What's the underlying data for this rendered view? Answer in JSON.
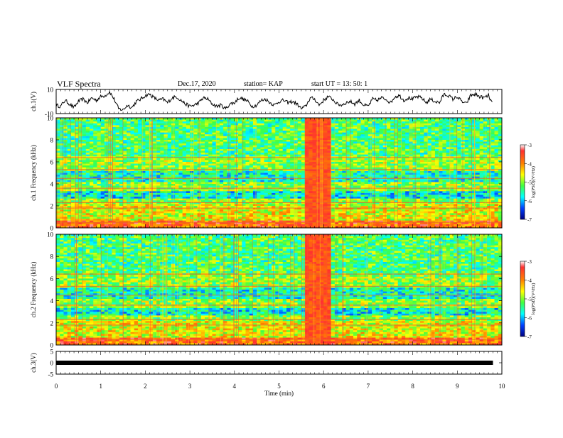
{
  "header": {
    "title": "VLF Spectra",
    "date": "Dec.17, 2020",
    "station": "station= KAP",
    "start": "start  UT =   13: 50: 1"
  },
  "colors": {
    "axis": "#000000",
    "trace": "#000000"
  },
  "chart_data": [
    {
      "type": "line",
      "panel": "ch1-waveform",
      "ylabel": "ch.1(V)",
      "ylim": [
        -10,
        10
      ],
      "yticks": [
        "10",
        "-10"
      ],
      "xlim": [
        0,
        10
      ],
      "series": [
        {
          "x": [
            0,
            0.1,
            0.2,
            0.3,
            0.4,
            0.5,
            0.6,
            0.7,
            0.8,
            0.9,
            1.0,
            1.1,
            1.2,
            1.3,
            1.4,
            1.5,
            1.6,
            1.7,
            1.8,
            1.9,
            2.0,
            2.1,
            2.2,
            2.3,
            2.4,
            2.5,
            2.6,
            2.7,
            2.8,
            2.9,
            3.0,
            3.1,
            3.2,
            3.3,
            3.4,
            3.5,
            3.6,
            3.7,
            3.8,
            3.9,
            4.0,
            4.1,
            4.2,
            4.3,
            4.4,
            4.5,
            4.6,
            4.7,
            4.8,
            4.9,
            5.0,
            5.1,
            5.2,
            5.3,
            5.4,
            5.5,
            5.6,
            5.7,
            5.8,
            5.9,
            6.0,
            6.1,
            6.2,
            6.3,
            6.4,
            6.5,
            6.6,
            6.7,
            6.8,
            6.9,
            7.0,
            7.1,
            7.2,
            7.3,
            7.4,
            7.5,
            7.6,
            7.7,
            7.8,
            7.9,
            8.0,
            8.1,
            8.2,
            8.3,
            8.4,
            8.5,
            8.6,
            8.7,
            8.8,
            8.9,
            9.0,
            9.1,
            9.2,
            9.3,
            9.4,
            9.5,
            9.6,
            9.7,
            9.8
          ],
          "values": [
            -3,
            -4,
            1,
            -2,
            -5,
            0,
            2,
            -1,
            3,
            1,
            4,
            5,
            8,
            2,
            -6,
            -7,
            -3,
            -5,
            0,
            2,
            5,
            6,
            3,
            1,
            2,
            -1,
            3,
            4,
            1,
            -2,
            -4,
            -3,
            -1,
            3,
            2,
            -2,
            -4,
            -3,
            -6,
            -2,
            -1,
            3,
            2,
            0,
            -4,
            -3,
            1,
            2,
            -1,
            -3,
            0,
            1,
            -1,
            0,
            -2,
            -6,
            -4,
            3,
            2,
            -3,
            1,
            4,
            2,
            -2,
            -3,
            -1,
            0,
            -2,
            1,
            -3,
            -4,
            2,
            1,
            3,
            2,
            -1,
            4,
            5,
            1,
            3,
            2,
            4,
            3,
            -1,
            2,
            0,
            -1,
            6,
            5,
            2,
            4,
            0,
            -2,
            5,
            6,
            4,
            3,
            5,
            -3
          ]
        }
      ]
    },
    {
      "type": "heatmap",
      "panel": "ch1-spectrogram",
      "ylabel": "ch.1 Frequency (kHz)",
      "ylim": [
        0,
        10
      ],
      "yticks": [
        "0",
        "2",
        "4",
        "6",
        "8",
        "10"
      ],
      "xlim": [
        0,
        10
      ],
      "colorbar": {
        "label": "log(PSD)(V²/Hz)",
        "range": [
          -7,
          -3
        ],
        "ticks": [
          "-3",
          "-4",
          "-5",
          "-6",
          "-7"
        ]
      }
    },
    {
      "type": "heatmap",
      "panel": "ch2-spectrogram",
      "ylabel": "ch.2 Frequency (kHz)",
      "ylim": [
        0,
        10
      ],
      "yticks": [
        "0",
        "2",
        "4",
        "6",
        "8",
        "10"
      ],
      "xlim": [
        0,
        10
      ],
      "colorbar": {
        "label": "log(PSD)(V²/Hz)",
        "range": [
          -7,
          -3
        ],
        "ticks": [
          "-3",
          "-4",
          "-5",
          "-6",
          "-7"
        ]
      }
    },
    {
      "type": "line",
      "panel": "ch3-waveform",
      "ylabel": "ch.3(V)",
      "ylim": [
        -5,
        5
      ],
      "yticks": [
        "5",
        "0",
        "-5"
      ],
      "xlim": [
        0,
        10
      ],
      "xlabel": "Time  (min)",
      "xticks": [
        "0",
        "1",
        "2",
        "3",
        "4",
        "5",
        "6",
        "7",
        "8",
        "9",
        "10"
      ],
      "series": [
        {
          "x": [
            0,
            9.8
          ],
          "values": [
            0,
            0
          ]
        }
      ]
    }
  ]
}
